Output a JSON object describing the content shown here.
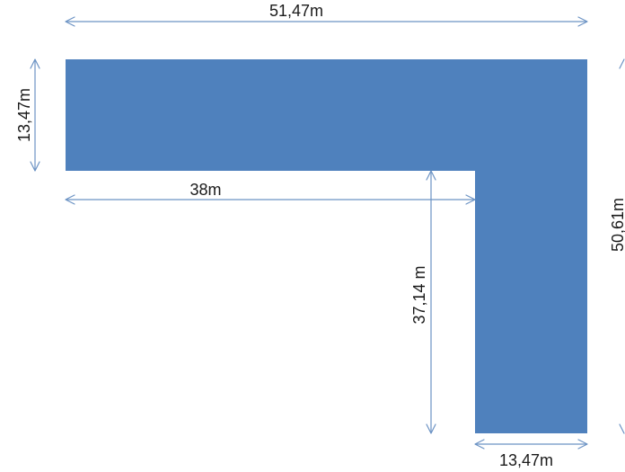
{
  "colors": {
    "shape_fill": "#4f81bd",
    "dimension_line": "#6c93c4",
    "label_text": "#1a1a1a"
  },
  "dimensions": {
    "top_width": "51,47m",
    "left_height": "13,47m",
    "inner_width": "38m",
    "inner_height": "37,14 m",
    "right_height": "50,61m",
    "bottom_width": "13,47m"
  }
}
